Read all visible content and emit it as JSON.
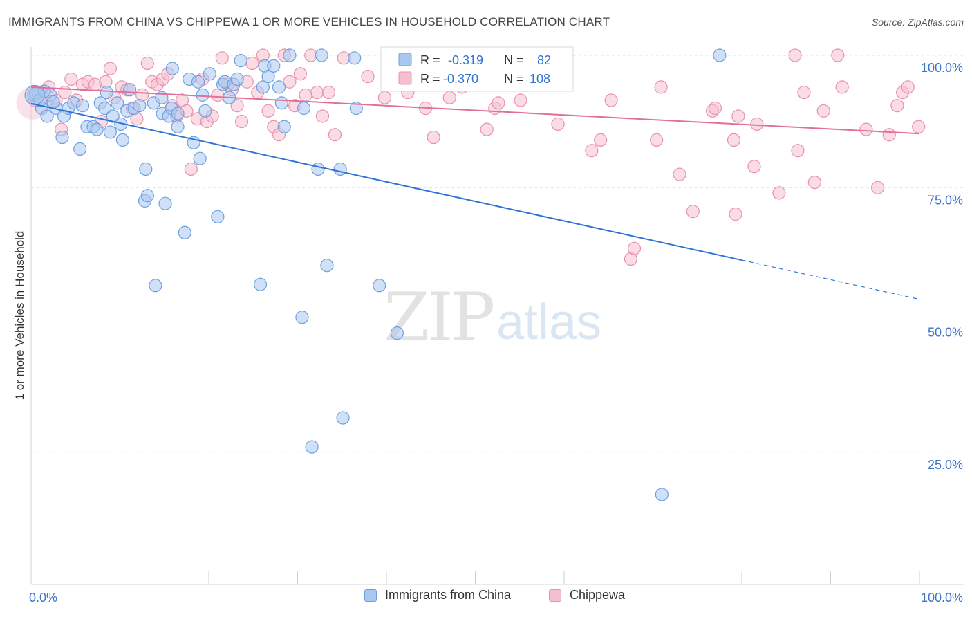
{
  "title": "IMMIGRANTS FROM CHINA VS CHIPPEWA 1 OR MORE VEHICLES IN HOUSEHOLD CORRELATION CHART",
  "source": "Source: ZipAtlas.com",
  "watermark": {
    "zip": "ZIP",
    "atlas": "atlas"
  },
  "colors": {
    "china_fill": "#a9c8f0",
    "china_stroke": "#6d9fdf",
    "china_line": "#2f74d4",
    "chippewa_fill": "#f5bfd0",
    "chippewa_stroke": "#e990ae",
    "chippewa_line": "#e0709a",
    "tick_label": "#3d73c8",
    "grid": "#e0e0e0"
  },
  "stats_legend": [
    {
      "r_label": "R =",
      "r_value": "-0.319",
      "n_label": "N =",
      "n_value": "82"
    },
    {
      "r_label": "R =",
      "r_value": "-0.370",
      "n_label": "N =",
      "n_value": "108"
    }
  ],
  "chart_data": {
    "type": "scatter",
    "xlabel": "",
    "ylabel": "1 or more Vehicles in Household",
    "xlim": [
      0,
      100
    ],
    "ylim": [
      0,
      100
    ],
    "x_tick_labels": [
      "0.0%",
      "100.0%"
    ],
    "y_ticks": [
      25,
      50,
      75,
      100
    ],
    "y_tick_labels": [
      "25.0%",
      "50.0%",
      "75.0%",
      "100.0%"
    ],
    "grid": true,
    "legend_position": "top-center",
    "series": [
      {
        "name": "Immigrants from China",
        "trend": {
          "x0": 0,
          "y0": 90.9,
          "x1": 80,
          "y1": 61.3,
          "dash_x1": 100,
          "dash_y1": 53.9
        },
        "points": [
          [
            0.3,
            92.5
          ],
          [
            0.8,
            93
          ],
          [
            1.2,
            90
          ],
          [
            1.8,
            88.5
          ],
          [
            2.2,
            92.5
          ],
          [
            2.8,
            90
          ],
          [
            3.5,
            84.5
          ],
          [
            3.7,
            88.5
          ],
          [
            4.2,
            90
          ],
          [
            4.8,
            91
          ],
          [
            5.5,
            82.3
          ],
          [
            5.8,
            90.5
          ],
          [
            6.3,
            86.5
          ],
          [
            7,
            86.5
          ],
          [
            7.4,
            86
          ],
          [
            7.8,
            91
          ],
          [
            8.3,
            90
          ],
          [
            8.5,
            93
          ],
          [
            8.9,
            85.5
          ],
          [
            9.2,
            88.5
          ],
          [
            9.7,
            91
          ],
          [
            10.1,
            87
          ],
          [
            10.3,
            84
          ],
          [
            10.8,
            89.5
          ],
          [
            11.1,
            93.5
          ],
          [
            11.6,
            90
          ],
          [
            12.2,
            90.5
          ],
          [
            12.8,
            72.5
          ],
          [
            12.9,
            78.5
          ],
          [
            13.1,
            73.5
          ],
          [
            13.8,
            91
          ],
          [
            14,
            56.5
          ],
          [
            14.7,
            92
          ],
          [
            14.8,
            89
          ],
          [
            15.1,
            72
          ],
          [
            15.5,
            88.5
          ],
          [
            15.8,
            90
          ],
          [
            15.9,
            97.5
          ],
          [
            16.5,
            89
          ],
          [
            16.5,
            86.5
          ],
          [
            17.3,
            66.5
          ],
          [
            17.8,
            95.5
          ],
          [
            18.3,
            83.5
          ],
          [
            18.8,
            95
          ],
          [
            19,
            80.5
          ],
          [
            19.3,
            92.5
          ],
          [
            19.6,
            89.5
          ],
          [
            20.1,
            96.5
          ],
          [
            21,
            69.5
          ],
          [
            21.6,
            94.5
          ],
          [
            21.8,
            95
          ],
          [
            22.3,
            92
          ],
          [
            22.8,
            94.5
          ],
          [
            23.2,
            95.5
          ],
          [
            23.6,
            99
          ],
          [
            25.8,
            56.7
          ],
          [
            26.1,
            94
          ],
          [
            26.3,
            98
          ],
          [
            26.7,
            96
          ],
          [
            27.3,
            98
          ],
          [
            27.9,
            94
          ],
          [
            28.2,
            91
          ],
          [
            28.5,
            86.5
          ],
          [
            29.1,
            100
          ],
          [
            30.5,
            50.5
          ],
          [
            30.7,
            90
          ],
          [
            32.3,
            78.5
          ],
          [
            32.7,
            100
          ],
          [
            33.3,
            60.3
          ],
          [
            34.8,
            78.5
          ],
          [
            35.1,
            31.5
          ],
          [
            36.4,
            99.5
          ],
          [
            36.6,
            90
          ],
          [
            39.2,
            56.5
          ],
          [
            41.2,
            47.5
          ],
          [
            31.6,
            26
          ],
          [
            71,
            17
          ],
          [
            77.5,
            100
          ],
          [
            0.5,
            92.8
          ],
          [
            1,
            91.5
          ],
          [
            1.5,
            93.2
          ],
          [
            2.5,
            91.2
          ]
        ]
      },
      {
        "name": "Chippewa",
        "trend": {
          "x0": 0,
          "y0": 94,
          "x1": 100,
          "y1": 85.2
        },
        "points": [
          [
            0.4,
            91.5
          ],
          [
            0.9,
            93
          ],
          [
            1.5,
            92
          ],
          [
            2,
            94
          ],
          [
            2.8,
            91.5
          ],
          [
            3.4,
            86
          ],
          [
            3.8,
            93
          ],
          [
            4.5,
            95.5
          ],
          [
            5.1,
            91.5
          ],
          [
            5.8,
            94.5
          ],
          [
            6.4,
            95
          ],
          [
            7.2,
            94.5
          ],
          [
            7.9,
            87.5
          ],
          [
            8.4,
            95
          ],
          [
            8.9,
            97.5
          ],
          [
            9.4,
            92
          ],
          [
            10.2,
            94
          ],
          [
            10.8,
            93.5
          ],
          [
            11.4,
            90
          ],
          [
            11.9,
            88
          ],
          [
            12.5,
            92.5
          ],
          [
            13.1,
            98.5
          ],
          [
            13.6,
            95
          ],
          [
            14.2,
            94.5
          ],
          [
            14.8,
            95.5
          ],
          [
            15.4,
            96.5
          ],
          [
            15.9,
            90.5
          ],
          [
            16.4,
            88.5
          ],
          [
            17,
            91.5
          ],
          [
            17.5,
            89.5
          ],
          [
            18,
            78.5
          ],
          [
            18.7,
            88
          ],
          [
            19.3,
            95.5
          ],
          [
            19.8,
            87.5
          ],
          [
            20.4,
            88.5
          ],
          [
            21,
            92.5
          ],
          [
            21.5,
            99.5
          ],
          [
            22.1,
            94.5
          ],
          [
            22.6,
            93.5
          ],
          [
            23.2,
            90.5
          ],
          [
            23.7,
            87.5
          ],
          [
            24.3,
            95
          ],
          [
            24.9,
            98.5
          ],
          [
            25.5,
            93
          ],
          [
            26.1,
            100
          ],
          [
            26.7,
            89.5
          ],
          [
            27.3,
            86.5
          ],
          [
            27.9,
            85
          ],
          [
            28.5,
            100
          ],
          [
            29.1,
            95
          ],
          [
            29.7,
            90.5
          ],
          [
            30.3,
            96.5
          ],
          [
            30.9,
            92.5
          ],
          [
            31.5,
            100
          ],
          [
            32.2,
            93
          ],
          [
            32.8,
            88.5
          ],
          [
            33.5,
            93
          ],
          [
            34.2,
            85
          ],
          [
            35.2,
            99.5
          ],
          [
            37.9,
            96
          ],
          [
            39.8,
            92
          ],
          [
            42.4,
            93
          ],
          [
            44.4,
            90
          ],
          [
            45.3,
            84.5
          ],
          [
            48.2,
            96
          ],
          [
            48.5,
            94
          ],
          [
            47.1,
            92
          ],
          [
            49.5,
            96.5
          ],
          [
            51.3,
            86
          ],
          [
            52.2,
            90
          ],
          [
            52.6,
            91
          ],
          [
            54.6,
            100
          ],
          [
            55.1,
            91.5
          ],
          [
            56.2,
            98
          ],
          [
            59.3,
            87
          ],
          [
            63.1,
            82
          ],
          [
            64.1,
            84
          ],
          [
            65.3,
            91.5
          ],
          [
            67.5,
            61.5
          ],
          [
            67.9,
            63.5
          ],
          [
            70.4,
            84
          ],
          [
            70.9,
            94
          ],
          [
            73,
            77.5
          ],
          [
            74.5,
            70.5
          ],
          [
            76.7,
            89.5
          ],
          [
            77,
            90
          ],
          [
            79.1,
            84
          ],
          [
            79.3,
            70
          ],
          [
            79.6,
            88.5
          ],
          [
            81.4,
            79
          ],
          [
            81.7,
            87
          ],
          [
            84.2,
            74
          ],
          [
            86,
            100
          ],
          [
            86.3,
            82
          ],
          [
            87,
            93
          ],
          [
            88.2,
            76
          ],
          [
            89.2,
            89.5
          ],
          [
            90.8,
            100
          ],
          [
            91.3,
            94
          ],
          [
            94,
            86
          ],
          [
            95.3,
            75
          ],
          [
            96.6,
            85
          ],
          [
            97.5,
            90.5
          ],
          [
            98.1,
            93
          ],
          [
            98.7,
            94
          ],
          [
            99.9,
            86.5
          ]
        ]
      }
    ]
  },
  "bottom_legend": [
    {
      "label": "Immigrants from China"
    },
    {
      "label": "Chippewa"
    }
  ]
}
